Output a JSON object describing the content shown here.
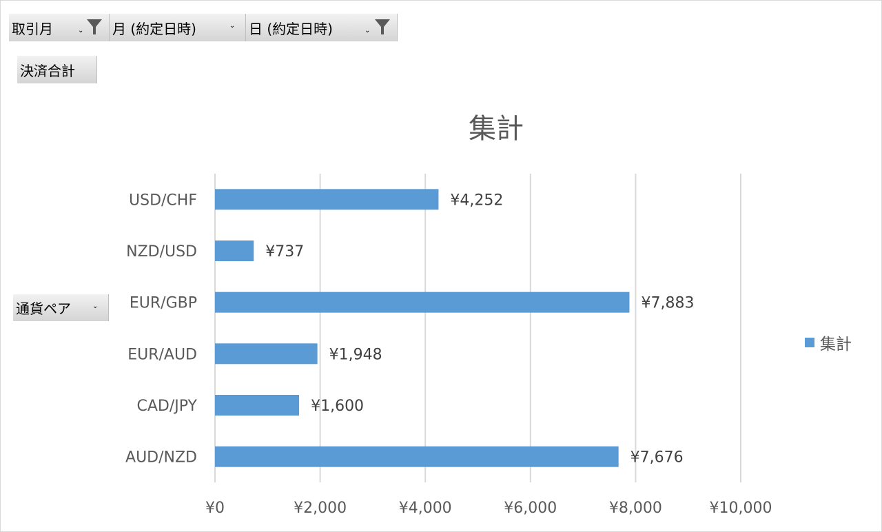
{
  "filters": {
    "row_filters": [
      {
        "label": "取引月",
        "has_filter": true
      },
      {
        "label": "月 (約定日時)",
        "has_filter": false
      },
      {
        "label": "日 (約定日時)",
        "has_filter": true
      }
    ],
    "value_field": "決済合計",
    "axis_field": "通貨ペア"
  },
  "icons": {
    "dropdown": "chevron-down-icon",
    "filter": "filter-funnel-icon"
  },
  "colors": {
    "bar": "#5b9bd5",
    "grid": "#d9d9d9",
    "text": "#595959"
  },
  "chart_data": {
    "type": "bar",
    "orientation": "horizontal",
    "title": "集計",
    "categories": [
      "USD/CHF",
      "NZD/USD",
      "EUR/GBP",
      "EUR/AUD",
      "CAD/JPY",
      "AUD/NZD"
    ],
    "series": [
      {
        "name": "集計",
        "values": [
          4252,
          737,
          7883,
          1948,
          1600,
          7676
        ]
      }
    ],
    "data_labels": [
      "¥4,252",
      "¥737",
      "¥7,883",
      "¥1,948",
      "¥1,600",
      "¥7,676"
    ],
    "xlim": [
      0,
      10000
    ],
    "x_ticks": [
      0,
      2000,
      4000,
      6000,
      8000,
      10000
    ],
    "x_tick_labels": [
      "¥0",
      "¥2,000",
      "¥4,000",
      "¥6,000",
      "¥8,000",
      "¥10,000"
    ],
    "grid": true,
    "legend_position": "right"
  }
}
